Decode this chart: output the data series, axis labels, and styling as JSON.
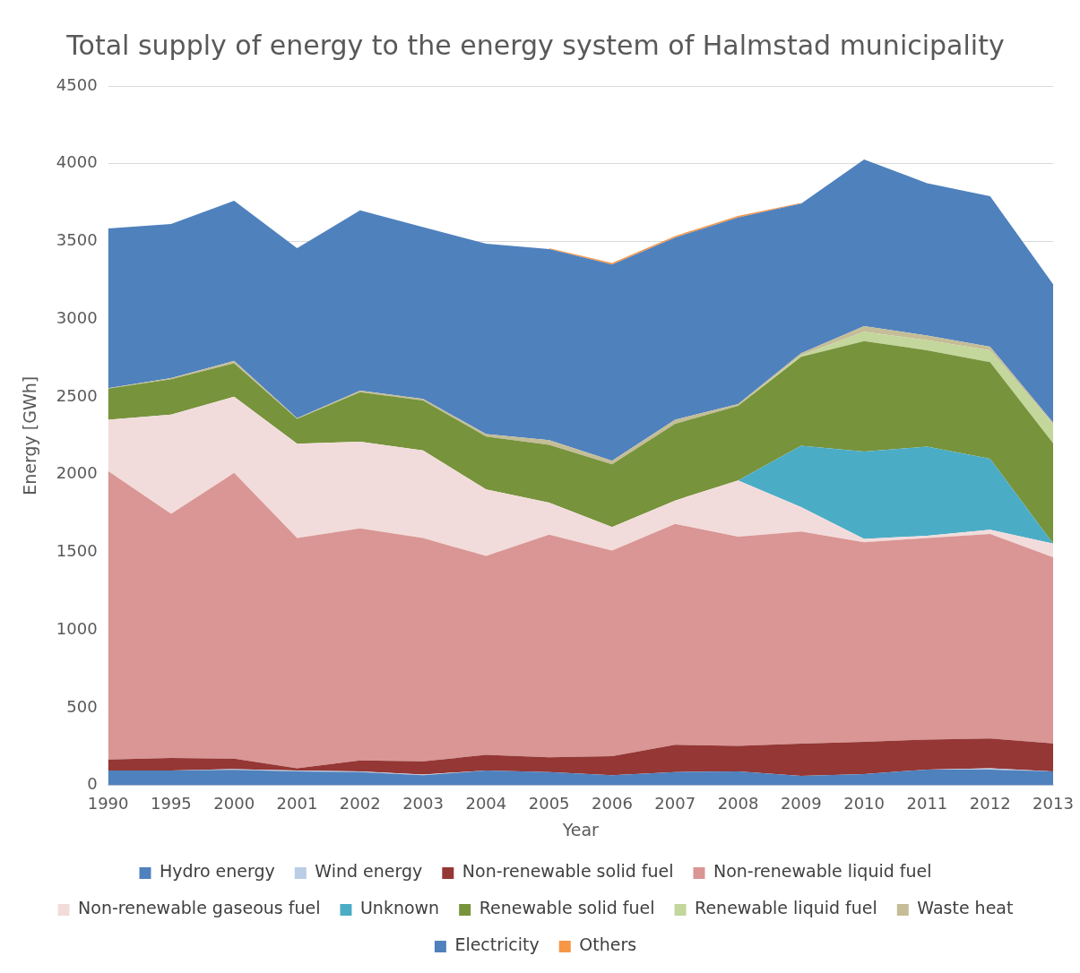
{
  "chart_data": {
    "type": "area",
    "title": "Total supply of energy to the energy system of Halmstad municipality",
    "xlabel": "Year",
    "ylabel": "Energy [GWh]",
    "categories": [
      "1990",
      "1995",
      "2000",
      "2001",
      "2002",
      "2003",
      "2004",
      "2005",
      "2006",
      "2007",
      "2008",
      "2009",
      "2010",
      "2011",
      "2012",
      "2013"
    ],
    "stacked": true,
    "ylim": [
      0,
      4500
    ],
    "yticks": [
      0,
      500,
      1000,
      1500,
      2000,
      2500,
      3000,
      3500,
      4000,
      4500
    ],
    "grid": "y",
    "legend": "bottom",
    "marker": "none",
    "series": [
      {
        "name": "Hydro energy",
        "color": "#4f81bd",
        "values": [
          95,
          95,
          100,
          90,
          85,
          65,
          95,
          85,
          66,
          86,
          90,
          61,
          73,
          102,
          102,
          90
        ]
      },
      {
        "name": "Wind energy",
        "color": "#b9cde5",
        "values": [
          0,
          0,
          5,
          5,
          5,
          5,
          0,
          0,
          0,
          0,
          0,
          0,
          0,
          0,
          8,
          0
        ]
      },
      {
        "name": "Non-renewable solid fuel",
        "color": "#953735",
        "values": [
          72,
          82,
          67,
          15,
          70,
          85,
          101,
          96,
          122,
          175,
          164,
          207,
          207,
          193,
          192,
          180
        ]
      },
      {
        "name": "Non-renewable liquid fuel",
        "color": "#d99694",
        "values": [
          1856,
          1571,
          1839,
          1481,
          1493,
          1436,
          1280,
          1433,
          1323,
          1421,
          1347,
          1365,
          1285,
          1297,
          1316,
          1197
        ]
      },
      {
        "name": "Non-renewable gaseous fuel",
        "color": "#f2dcdb",
        "values": [
          330,
          638,
          490,
          607,
          559,
          564,
          428,
          206,
          151,
          151,
          361,
          158,
          21,
          14,
          27,
          88
        ]
      },
      {
        "name": "Unknown",
        "color": "#4bacc6",
        "values": [
          0,
          0,
          0,
          0,
          0,
          0,
          0,
          0,
          0,
          0,
          0,
          395,
          562,
          573,
          457,
          0
        ]
      },
      {
        "name": "Renewable solid fuel",
        "color": "#77933c",
        "values": [
          200,
          227,
          215,
          160,
          318,
          322,
          341,
          371,
          404,
          494,
          480,
          571,
          711,
          621,
          621,
          647
        ]
      },
      {
        "name": "Renewable liquid fuel",
        "color": "#c3d69b",
        "values": [
          0,
          0,
          0,
          0,
          0,
          0,
          0,
          0,
          0,
          0,
          0,
          11,
          60,
          64,
          77,
          120
        ]
      },
      {
        "name": "Waste heat",
        "color": "#c4bd97",
        "values": [
          3,
          8,
          15,
          5,
          10,
          10,
          15,
          31,
          23,
          26,
          11,
          12,
          36,
          31,
          23,
          12
        ]
      },
      {
        "name": "Electricity",
        "color": "#4f81bd",
        "values": [
          1027,
          991,
          1031,
          1093,
          1160,
          1105,
          1225,
          1229,
          1262,
          1172,
          1201,
          963,
          1072,
          980,
          968,
          891
        ]
      },
      {
        "name": "Others",
        "color": "#f79646",
        "values": [
          null,
          null,
          null,
          null,
          null,
          null,
          null,
          5,
          10,
          10,
          10,
          5,
          null,
          null,
          null,
          null
        ]
      }
    ]
  }
}
